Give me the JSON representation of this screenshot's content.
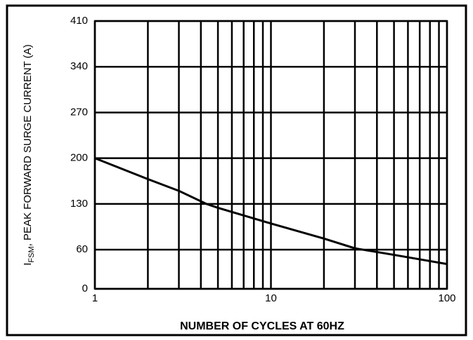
{
  "chart_data": {
    "type": "line",
    "x_scale": "log",
    "x_label": "NUMBER OF CYCLES AT 60HZ",
    "y_label": {
      "main": "I",
      "sub": "FSM",
      "rest": ", PEAK FORWARD SURGE CURRENT (A)"
    },
    "x": [
      1,
      2,
      3,
      4.3,
      5,
      10,
      20,
      30,
      50,
      100
    ],
    "series": [
      {
        "color": "#000000",
        "values": [
          200,
          168,
          150,
          130,
          124,
          100,
          77,
          62,
          52,
          38
        ]
      }
    ],
    "xlim": [
      1,
      100
    ],
    "xticks": [
      1,
      10,
      100
    ],
    "minor_xticks": [
      2,
      3,
      4,
      5,
      6,
      7,
      8,
      9,
      20,
      30,
      40,
      50,
      60,
      70,
      80,
      90
    ],
    "ylim": [
      0,
      410
    ],
    "yticks": [
      0,
      60,
      130,
      200,
      270,
      340,
      410
    ],
    "grid": true
  }
}
